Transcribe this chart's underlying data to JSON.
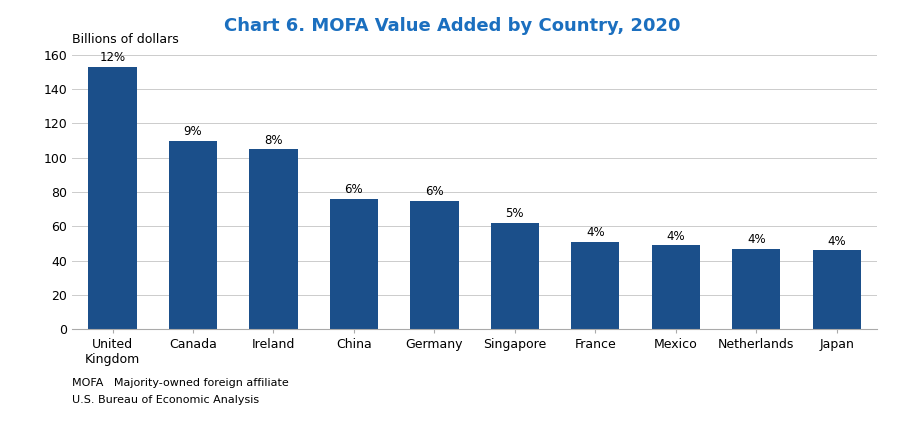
{
  "title": "Chart 6. MOFA Value Added by Country, 2020",
  "ylabel": "Billions of dollars",
  "categories": [
    "United\nKingdom",
    "Canada",
    "Ireland",
    "China",
    "Germany",
    "Singapore",
    "France",
    "Mexico",
    "Netherlands",
    "Japan"
  ],
  "values": [
    153,
    110,
    105,
    76,
    75,
    62,
    51,
    49,
    47,
    46
  ],
  "percentages": [
    "12%",
    "9%",
    "8%",
    "6%",
    "6%",
    "5%",
    "4%",
    "4%",
    "4%",
    "4%"
  ],
  "bar_color": "#1B4F8A",
  "title_color": "#1B6FBF",
  "ylim": [
    0,
    160
  ],
  "yticks": [
    0,
    20,
    40,
    60,
    80,
    100,
    120,
    140,
    160
  ],
  "footnote_line1": "MOFA   Majority-owned foreign affiliate",
  "footnote_line2": "U.S. Bureau of Economic Analysis",
  "background_color": "#ffffff",
  "grid_color": "#cccccc"
}
